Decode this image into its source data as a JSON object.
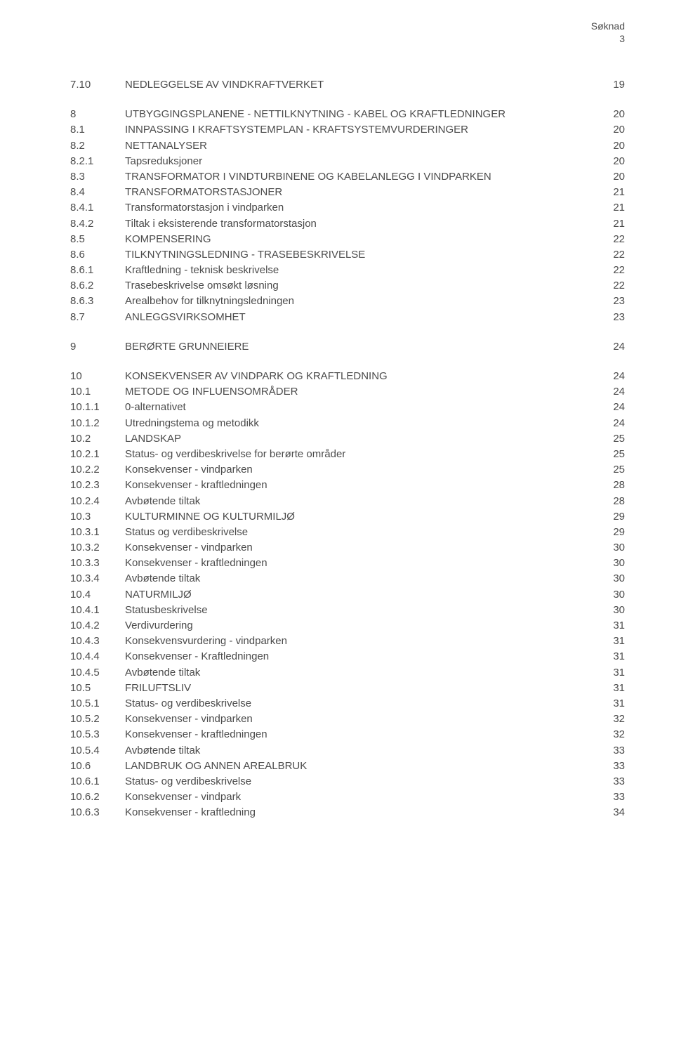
{
  "header": {
    "title": "Søknad",
    "page": "3"
  },
  "toc": [
    {
      "rows": [
        {
          "num": "7.10",
          "title": "NEDLEGGELSE AV VINDKRAFTVERKET",
          "page": "19"
        }
      ]
    },
    {
      "rows": [
        {
          "num": "8",
          "title": "UTBYGGINGSPLANENE - NETTILKNYTNING - KABEL OG KRAFTLEDNINGER",
          "page": "20"
        },
        {
          "num": "8.1",
          "title": "INNPASSING I KRAFTSYSTEMPLAN - KRAFTSYSTEMVURDERINGER",
          "page": "20"
        },
        {
          "num": "8.2",
          "title": "NETTANALYSER",
          "page": "20"
        },
        {
          "num": "8.2.1",
          "title": "Tapsreduksjoner",
          "page": "20"
        },
        {
          "num": "8.3",
          "title": "TRANSFORMATOR I VINDTURBINENE OG KABELANLEGG I VINDPARKEN",
          "page": "20"
        },
        {
          "num": "8.4",
          "title": "TRANSFORMATORSTASJONER",
          "page": "21"
        },
        {
          "num": "8.4.1",
          "title": "Transformatorstasjon i vindparken",
          "page": "21"
        },
        {
          "num": "8.4.2",
          "title": "Tiltak i eksisterende transformatorstasjon",
          "page": "21"
        },
        {
          "num": "8.5",
          "title": "KOMPENSERING",
          "page": "22"
        },
        {
          "num": "8.6",
          "title": "TILKNYTNINGSLEDNING - TRASEBESKRIVELSE",
          "page": "22"
        },
        {
          "num": "8.6.1",
          "title": "Kraftledning - teknisk beskrivelse",
          "page": "22"
        },
        {
          "num": "8.6.2",
          "title": "Trasebeskrivelse omsøkt løsning",
          "page": "22"
        },
        {
          "num": "8.6.3",
          "title": "Arealbehov for tilknytningsledningen",
          "page": "23"
        },
        {
          "num": "8.7",
          "title": "ANLEGGSVIRKSOMHET",
          "page": "23"
        }
      ]
    },
    {
      "rows": [
        {
          "num": "9",
          "title": "BERØRTE GRUNNEIERE",
          "page": "24"
        }
      ]
    },
    {
      "rows": [
        {
          "num": "10",
          "title": "KONSEKVENSER AV VINDPARK OG KRAFTLEDNING",
          "page": "24"
        },
        {
          "num": "10.1",
          "title": "METODE OG INFLUENSOMRÅDER",
          "page": "24"
        },
        {
          "num": "10.1.1",
          "title": "0-alternativet",
          "page": "24"
        },
        {
          "num": "10.1.2",
          "title": "Utredningstema og metodikk",
          "page": "24"
        },
        {
          "num": "10.2",
          "title": "LANDSKAP",
          "page": "25"
        },
        {
          "num": "10.2.1",
          "title": "Status- og verdibeskrivelse for berørte områder",
          "page": "25"
        },
        {
          "num": "10.2.2",
          "title": "Konsekvenser - vindparken",
          "page": "25"
        },
        {
          "num": "10.2.3",
          "title": "Konsekvenser - kraftledningen",
          "page": "28"
        },
        {
          "num": "10.2.4",
          "title": "Avbøtende tiltak",
          "page": "28"
        },
        {
          "num": "10.3",
          "title": "KULTURMINNE OG KULTURMILJØ",
          "page": "29"
        },
        {
          "num": "10.3.1",
          "title": "Status og verdibeskrivelse",
          "page": "29"
        },
        {
          "num": "10.3.2",
          "title": "Konsekvenser - vindparken",
          "page": "30"
        },
        {
          "num": "10.3.3",
          "title": "Konsekvenser - kraftledningen",
          "page": "30"
        },
        {
          "num": "10.3.4",
          "title": "Avbøtende tiltak",
          "page": "30"
        },
        {
          "num": "10.4",
          "title": "NATURMILJØ",
          "page": "30"
        },
        {
          "num": "10.4.1",
          "title": "Statusbeskrivelse",
          "page": "30"
        },
        {
          "num": "10.4.2",
          "title": "Verdivurdering",
          "page": "31"
        },
        {
          "num": "10.4.3",
          "title": "Konsekvensvurdering - vindparken",
          "page": "31"
        },
        {
          "num": "10.4.4",
          "title": "Konsekvenser - Kraftledningen",
          "page": "31"
        },
        {
          "num": "10.4.5",
          "title": "Avbøtende tiltak",
          "page": "31"
        },
        {
          "num": "10.5",
          "title": "FRILUFTSLIV",
          "page": "31"
        },
        {
          "num": "10.5.1",
          "title": "Status- og verdibeskrivelse",
          "page": "31"
        },
        {
          "num": "10.5.2",
          "title": "Konsekvenser - vindparken",
          "page": "32"
        },
        {
          "num": "10.5.3",
          "title": "Konsekvenser - kraftledningen",
          "page": "32"
        },
        {
          "num": "10.5.4",
          "title": "Avbøtende tiltak",
          "page": "33"
        },
        {
          "num": "10.6",
          "title": "LANDBRUK OG ANNEN AREALBRUK",
          "page": "33"
        },
        {
          "num": "10.6.1",
          "title": "Status- og verdibeskrivelse",
          "page": "33"
        },
        {
          "num": "10.6.2",
          "title": "Konsekvenser - vindpark",
          "page": "33"
        },
        {
          "num": "10.6.3",
          "title": "Konsekvenser - kraftledning",
          "page": "34"
        }
      ]
    }
  ]
}
